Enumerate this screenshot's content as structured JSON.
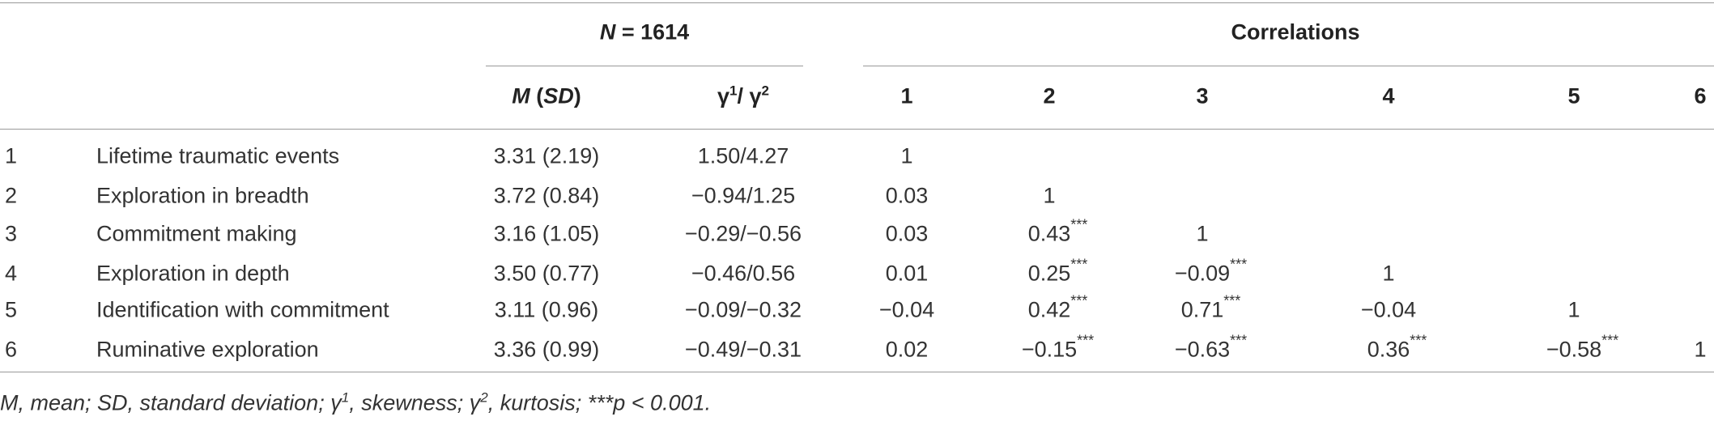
{
  "header": {
    "group1": [
      {
        "t": "N",
        "i": true
      },
      {
        "t": " = 1614"
      }
    ],
    "group2": [
      {
        "t": "Correlations"
      }
    ],
    "msd": [
      {
        "t": "M",
        "i": true
      },
      {
        "t": " ("
      },
      {
        "t": "SD",
        "i": true
      },
      {
        "t": ")"
      }
    ],
    "gamma": [
      {
        "t": "γ"
      },
      {
        "t": "1",
        "sup": true
      },
      {
        "t": "/ γ"
      },
      {
        "t": "2",
        "sup": true
      }
    ],
    "corr": [
      "1",
      "2",
      "3",
      "4",
      "5",
      "6"
    ]
  },
  "rows": [
    {
      "num": "1",
      "label": "Lifetime traumatic events",
      "msd": "3.31 (2.19)",
      "gamma": "1.50/4.27",
      "corr": [
        {
          "v": "1"
        }
      ]
    },
    {
      "num": "2",
      "label": "Exploration in breadth",
      "msd": "3.72 (0.84)",
      "gamma": "−0.94/1.25",
      "corr": [
        {
          "v": "0.03"
        },
        {
          "v": "1"
        }
      ]
    },
    {
      "num": "3",
      "label": "Commitment making",
      "msd": "3.16 (1.05)",
      "gamma": "−0.29/−0.56",
      "corr": [
        {
          "v": "0.03"
        },
        {
          "v": "0.43",
          "s": "***"
        },
        {
          "v": "1"
        }
      ]
    },
    {
      "num": "4",
      "label": "Exploration in depth",
      "msd": "3.50 (0.77)",
      "gamma": "−0.46/0.56",
      "corr": [
        {
          "v": "0.01"
        },
        {
          "v": "0.25",
          "s": "***"
        },
        {
          "v": "−0.09",
          "s": "***"
        },
        {
          "v": "1"
        }
      ]
    },
    {
      "num": "5",
      "label": "Identification with commitment",
      "msd": "3.11 (0.96)",
      "gamma": "−0.09/−0.32",
      "corr": [
        {
          "v": "−0.04"
        },
        {
          "v": "0.42",
          "s": "***"
        },
        {
          "v": "0.71",
          "s": "***"
        },
        {
          "v": "−0.04"
        },
        {
          "v": "1"
        }
      ]
    },
    {
      "num": "6",
      "label": "Ruminative exploration",
      "msd": "3.36 (0.99)",
      "gamma": "−0.49/−0.31",
      "corr": [
        {
          "v": "0.02"
        },
        {
          "v": "−0.15",
          "s": "***"
        },
        {
          "v": "−0.63",
          "s": "***"
        },
        {
          "v": "0.36",
          "s": "***"
        },
        {
          "v": "−0.58",
          "s": "***"
        },
        {
          "v": "1"
        }
      ]
    }
  ],
  "note": [
    {
      "t": "M, mean; SD, standard deviation; γ"
    },
    {
      "t": "1",
      "sup": true
    },
    {
      "t": ", skewness; γ"
    },
    {
      "t": "2",
      "sup": true
    },
    {
      "t": ", kurtosis; ***p < 0.001."
    }
  ]
}
